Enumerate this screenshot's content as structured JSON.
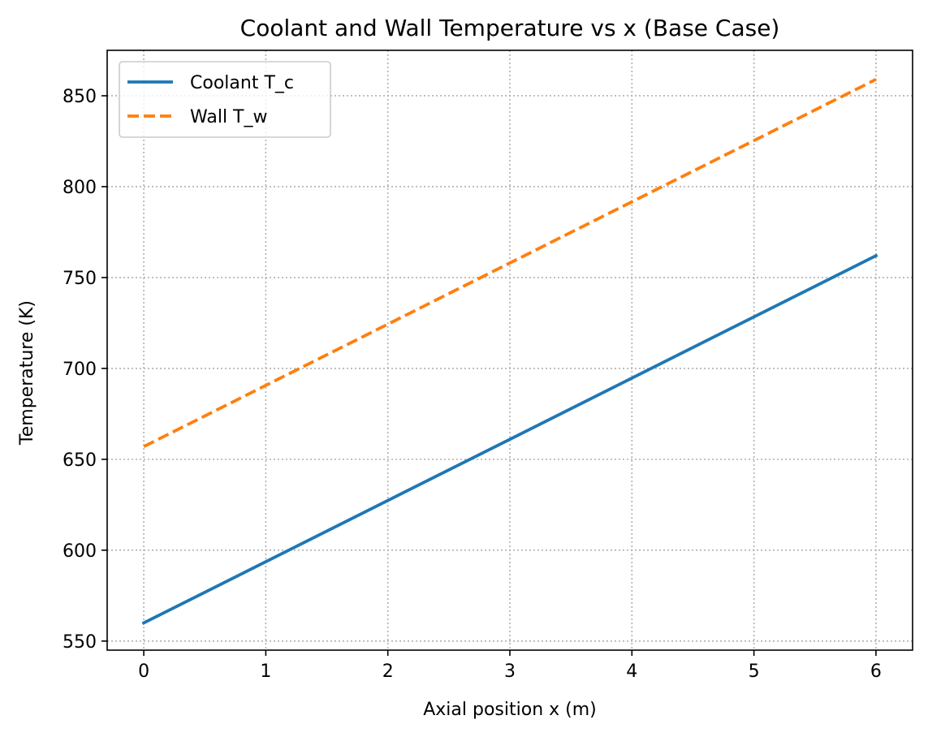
{
  "chart_data": {
    "type": "line",
    "title": "Coolant and Wall Temperature vs x (Base Case)",
    "xlabel": "Axial position x (m)",
    "ylabel": "Temperature (K)",
    "xlim": [
      -0.3,
      6.3
    ],
    "ylim": [
      545,
      875
    ],
    "xticks": [
      0,
      1,
      2,
      3,
      4,
      5,
      6
    ],
    "yticks": [
      550,
      600,
      650,
      700,
      750,
      800,
      850
    ],
    "grid": true,
    "legend_position": "top-left",
    "series": [
      {
        "name": "Coolant T_c",
        "color": "#1f77b4",
        "style": "solid",
        "x": [
          0,
          6
        ],
        "y": [
          560,
          762
        ]
      },
      {
        "name": "Wall T_w",
        "color": "#ff7f0e",
        "style": "dashed",
        "x": [
          0,
          6
        ],
        "y": [
          657,
          859
        ]
      }
    ]
  }
}
